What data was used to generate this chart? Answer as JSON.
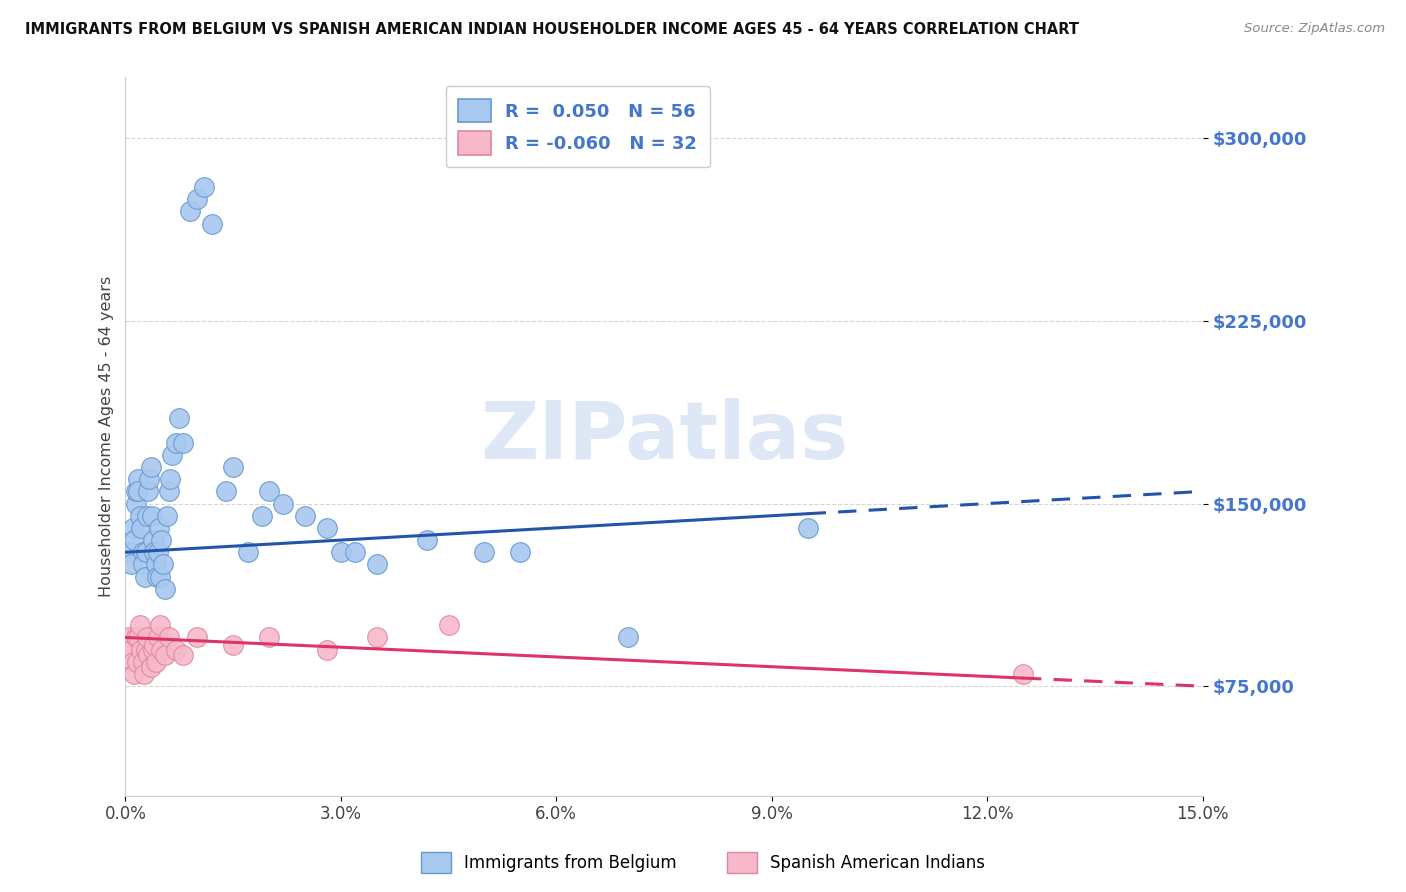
{
  "title": "IMMIGRANTS FROM BELGIUM VS SPANISH AMERICAN INDIAN HOUSEHOLDER INCOME AGES 45 - 64 YEARS CORRELATION CHART",
  "source": "Source: ZipAtlas.com",
  "ylabel": "Householder Income Ages 45 - 64 years",
  "xlim": [
    0.0,
    15.0
  ],
  "ylim": [
    30000,
    325000
  ],
  "yticks": [
    75000,
    150000,
    225000,
    300000
  ],
  "ytick_labels": [
    "$75,000",
    "$150,000",
    "$225,000",
    "$300,000"
  ],
  "xticks": [
    0.0,
    3.0,
    6.0,
    9.0,
    12.0,
    15.0
  ],
  "xtick_labels": [
    "0.0%",
    "3.0%",
    "6.0%",
    "9.0%",
    "12.0%",
    "15.0%"
  ],
  "blue_R": 0.05,
  "blue_N": 56,
  "pink_R": -0.06,
  "pink_N": 32,
  "blue_color": "#A8C8F0",
  "pink_color": "#F8B8CC",
  "blue_edge": "#6699CC",
  "pink_edge": "#DD8899",
  "trend_blue": "#2255AA",
  "trend_pink": "#DD3366",
  "watermark_color": "#C8D8F0",
  "legend_label_blue": "Immigrants from Belgium",
  "legend_label_pink": "Spanish American Indians",
  "blue_x": [
    0.05,
    0.08,
    0.1,
    0.12,
    0.14,
    0.15,
    0.17,
    0.18,
    0.2,
    0.22,
    0.24,
    0.25,
    0.27,
    0.28,
    0.3,
    0.32,
    0.33,
    0.35,
    0.37,
    0.38,
    0.4,
    0.42,
    0.44,
    0.45,
    0.47,
    0.48,
    0.5,
    0.52,
    0.55,
    0.58,
    0.6,
    0.62,
    0.65,
    0.7,
    0.75,
    0.8,
    0.9,
    1.0,
    1.1,
    1.2,
    1.4,
    1.5,
    1.7,
    1.9,
    2.0,
    2.2,
    2.5,
    2.8,
    3.0,
    3.5,
    4.2,
    5.0,
    5.5,
    7.0,
    9.5,
    3.2
  ],
  "blue_y": [
    130000,
    125000,
    140000,
    135000,
    150000,
    155000,
    160000,
    155000,
    145000,
    140000,
    130000,
    125000,
    120000,
    130000,
    145000,
    155000,
    160000,
    165000,
    145000,
    135000,
    130000,
    125000,
    120000,
    130000,
    140000,
    120000,
    135000,
    125000,
    115000,
    145000,
    155000,
    160000,
    170000,
    175000,
    185000,
    175000,
    270000,
    275000,
    280000,
    265000,
    155000,
    165000,
    130000,
    145000,
    155000,
    150000,
    145000,
    140000,
    130000,
    125000,
    135000,
    130000,
    130000,
    95000,
    140000,
    130000
  ],
  "pink_x": [
    0.05,
    0.08,
    0.1,
    0.12,
    0.14,
    0.16,
    0.18,
    0.2,
    0.22,
    0.24,
    0.26,
    0.28,
    0.3,
    0.32,
    0.35,
    0.38,
    0.4,
    0.42,
    0.45,
    0.48,
    0.5,
    0.55,
    0.6,
    0.7,
    0.8,
    1.0,
    1.5,
    2.0,
    2.8,
    3.5,
    4.5,
    12.5
  ],
  "pink_y": [
    95000,
    90000,
    85000,
    80000,
    95000,
    85000,
    95000,
    100000,
    90000,
    85000,
    80000,
    90000,
    95000,
    88000,
    83000,
    90000,
    92000,
    85000,
    95000,
    100000,
    90000,
    88000,
    95000,
    90000,
    88000,
    95000,
    92000,
    95000,
    90000,
    95000,
    100000,
    80000
  ],
  "blue_trend_x0": 0.0,
  "blue_trend_y0": 130000,
  "blue_trend_x1": 15.0,
  "blue_trend_y1": 155000,
  "blue_solid_end": 9.5,
  "pink_trend_x0": 0.0,
  "pink_trend_y0": 95000,
  "pink_trend_x1": 15.0,
  "pink_trend_y1": 75000,
  "pink_solid_end": 12.5
}
